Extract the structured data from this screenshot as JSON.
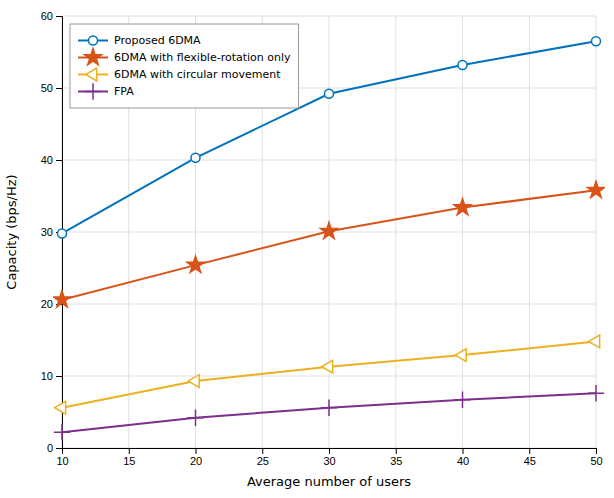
{
  "chart_data": {
    "type": "line",
    "x": [
      10,
      20,
      30,
      40,
      50
    ],
    "series": [
      {
        "name": "Proposed 6DMA",
        "color": "#0072BD",
        "marker": "circle-open",
        "values": [
          29.8,
          40.3,
          49.2,
          53.2,
          56.5
        ]
      },
      {
        "name": "6DMA with flexible-rotation only",
        "color": "#D95319",
        "marker": "star",
        "values": [
          20.6,
          25.4,
          30.1,
          33.4,
          35.8
        ]
      },
      {
        "name": "6DMA with circular movement",
        "color": "#EDB120",
        "marker": "triangle-left-open",
        "values": [
          5.6,
          9.3,
          11.3,
          12.9,
          14.8
        ]
      },
      {
        "name": "FPA",
        "color": "#7E2F8E",
        "marker": "plus",
        "values": [
          2.2,
          4.2,
          5.6,
          6.7,
          7.6
        ]
      }
    ],
    "xlabel": "Average number of users",
    "ylabel": "Capacity (bps/Hz)",
    "xlim": [
      10,
      50
    ],
    "ylim": [
      0,
      60
    ],
    "xticks": [
      10,
      15,
      20,
      25,
      30,
      35,
      40,
      45,
      50
    ],
    "yticks": [
      0,
      10,
      20,
      30,
      40,
      50,
      60
    ],
    "grid": true,
    "legend": "upper-left"
  }
}
